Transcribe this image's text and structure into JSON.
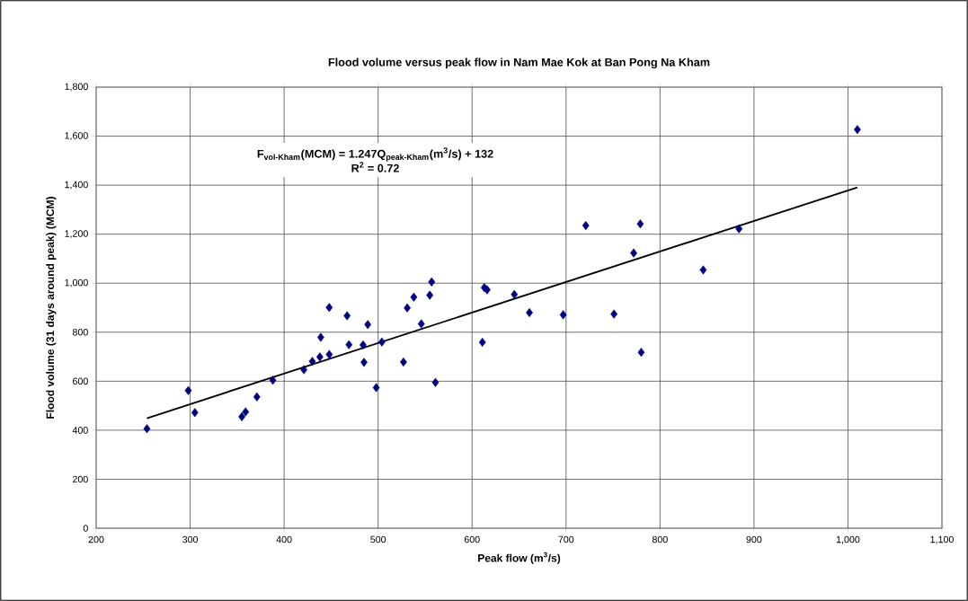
{
  "chart_data": {
    "type": "scatter",
    "title": "Flood volume versus peak flow in Nam Mae Kok at Ban Pong Na Kham",
    "xlabel": "Peak flow (m$^{3}$/s)",
    "ylabel": "Flood volume (31 days around peak) (MCM)",
    "annotations": [
      "F$_{vol-Kham}$(MCM) = 1.247Q$_{peak-Kham}$(m$^{3}$/s) + 132",
      "R$^{2}$ = 0.72"
    ],
    "xlim": [
      200,
      1100
    ],
    "xticks": [
      200,
      300,
      400,
      500,
      600,
      700,
      800,
      900,
      {
        "value": 1000,
        "label": "1,000"
      },
      {
        "value": 1100,
        "label": "1,100"
      }
    ],
    "ylim": [
      0,
      1800
    ],
    "yticks": [
      0,
      200,
      400,
      600,
      800,
      {
        "value": 1000,
        "label": "1,000"
      },
      {
        "value": 1200,
        "label": "1,200"
      },
      {
        "value": 1400,
        "label": "1,400"
      },
      {
        "value": 1600,
        "label": "1,600"
      },
      {
        "value": 1800,
        "label": "1,800"
      }
    ],
    "grid": true,
    "series": [
      {
        "color": "#000080",
        "marker": "diamond",
        "x": [
          254,
          298,
          305,
          355,
          359,
          371,
          388,
          421,
          430,
          438,
          448,
          439,
          448,
          467,
          489,
          469,
          484,
          485,
          498,
          504,
          557,
          555,
          538,
          531,
          546,
          613,
          616,
          645,
          661,
          697,
          751,
          611,
          527,
          561,
          1010,
          721,
          779,
          772,
          846,
          884,
          780
        ],
        "values": [
          406,
          562,
          472,
          455,
          475,
          536,
          604,
          647,
          681,
          699,
          709,
          779,
          901,
          867,
          831,
          749,
          748,
          677,
          574,
          760,
          1005,
          951,
          943,
          899,
          834,
          982,
          973,
          954,
          880,
          871,
          874,
          759,
          678,
          595,
          1627,
          1235,
          1242,
          1123,
          1054,
          1222,
          718
        ]
      },
      {
        "type": "line",
        "color": "#000000",
        "x": [
          254,
          1010
        ],
        "values": [
          449,
          1391
        ]
      }
    ]
  }
}
